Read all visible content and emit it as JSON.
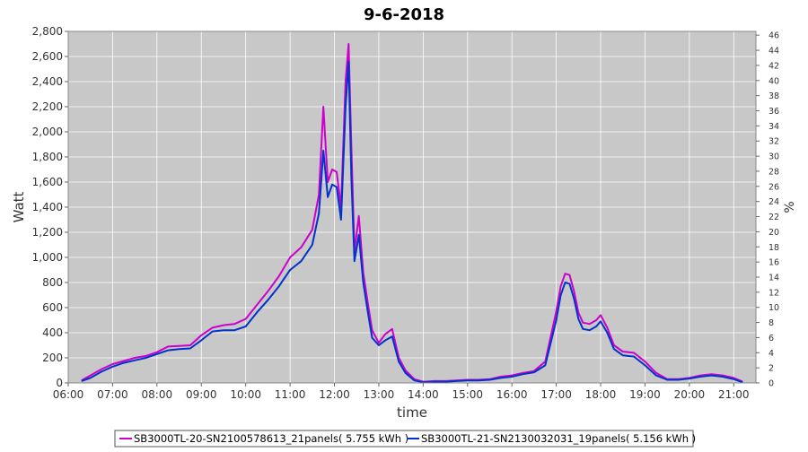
{
  "chart_data": {
    "type": "line",
    "title": "9-6-2018",
    "xlabel": "time",
    "ylabel": "Watt",
    "y2label": "%",
    "xlim": [
      6.0,
      21.5
    ],
    "ylim": [
      0,
      2800
    ],
    "y2lim": [
      0,
      46.5
    ],
    "x_ticks": [
      "06:00",
      "07:00",
      "08:00",
      "09:00",
      "10:00",
      "11:00",
      "12:00",
      "13:00",
      "14:00",
      "15:00",
      "16:00",
      "17:00",
      "18:00",
      "19:00",
      "20:00",
      "21:00"
    ],
    "y_ticks": [
      "0",
      "200",
      "400",
      "600",
      "800",
      "1,000",
      "1,200",
      "1,400",
      "1,600",
      "1,800",
      "2,000",
      "2,200",
      "2,400",
      "2,600",
      "2,800"
    ],
    "y2_ticks": [
      "0",
      "2",
      "4",
      "6",
      "8",
      "10",
      "12",
      "14",
      "16",
      "18",
      "20",
      "22",
      "24",
      "26",
      "28",
      "30",
      "32",
      "34",
      "36",
      "38",
      "40",
      "42",
      "44",
      "46"
    ],
    "grid": true,
    "legend_position": "bottom",
    "colors": {
      "plot_bg": "#c8c8c8",
      "grid": "#ffffff"
    },
    "series": [
      {
        "name": "SB3000TL-20-SN2100578613_21panels( 5.755 kWh )",
        "color": "#cc00cc",
        "x": [
          6.3,
          6.5,
          6.75,
          7.0,
          7.25,
          7.5,
          7.75,
          8.0,
          8.25,
          8.5,
          8.75,
          9.0,
          9.25,
          9.5,
          9.75,
          10.0,
          10.25,
          10.5,
          10.75,
          11.0,
          11.25,
          11.5,
          11.65,
          11.75,
          11.85,
          11.95,
          12.05,
          12.15,
          12.25,
          12.32,
          12.38,
          12.45,
          12.55,
          12.65,
          12.75,
          12.85,
          13.0,
          13.15,
          13.3,
          13.45,
          13.6,
          13.8,
          14.0,
          14.25,
          14.5,
          14.75,
          15.0,
          15.25,
          15.5,
          15.75,
          16.0,
          16.25,
          16.5,
          16.75,
          17.0,
          17.1,
          17.2,
          17.3,
          17.4,
          17.5,
          17.6,
          17.75,
          17.9,
          18.0,
          18.15,
          18.3,
          18.5,
          18.75,
          19.0,
          19.25,
          19.5,
          19.75,
          20.0,
          20.25,
          20.5,
          20.75,
          21.0,
          21.2
        ],
        "values": [
          20,
          60,
          110,
          150,
          175,
          200,
          215,
          245,
          290,
          295,
          300,
          380,
          440,
          460,
          470,
          510,
          620,
          730,
          850,
          1000,
          1080,
          1220,
          1500,
          2200,
          1600,
          1700,
          1680,
          1400,
          2400,
          2700,
          1900,
          1050,
          1330,
          880,
          640,
          420,
          320,
          390,
          430,
          200,
          100,
          30,
          10,
          15,
          15,
          20,
          25,
          25,
          30,
          50,
          60,
          80,
          95,
          170,
          570,
          770,
          870,
          860,
          730,
          560,
          480,
          470,
          500,
          540,
          440,
          300,
          250,
          240,
          170,
          80,
          30,
          30,
          40,
          60,
          70,
          60,
          40,
          10
        ]
      },
      {
        "name": "SB3000TL-21-SN2130032031_19panels( 5.156 kWh )",
        "color": "#0033cc",
        "x": [
          6.3,
          6.5,
          6.75,
          7.0,
          7.25,
          7.5,
          7.75,
          8.0,
          8.25,
          8.5,
          8.75,
          9.0,
          9.25,
          9.5,
          9.75,
          10.0,
          10.25,
          10.5,
          10.75,
          11.0,
          11.25,
          11.5,
          11.65,
          11.75,
          11.85,
          11.95,
          12.05,
          12.15,
          12.25,
          12.32,
          12.38,
          12.45,
          12.55,
          12.65,
          12.75,
          12.85,
          13.0,
          13.15,
          13.3,
          13.45,
          13.6,
          13.8,
          14.0,
          14.25,
          14.5,
          14.75,
          15.0,
          15.25,
          15.5,
          15.75,
          16.0,
          16.25,
          16.5,
          16.75,
          17.0,
          17.1,
          17.2,
          17.3,
          17.4,
          17.5,
          17.6,
          17.75,
          17.9,
          18.0,
          18.15,
          18.3,
          18.5,
          18.75,
          19.0,
          19.25,
          19.5,
          19.75,
          20.0,
          20.25,
          20.5,
          20.75,
          21.0,
          21.2
        ],
        "values": [
          15,
          40,
          90,
          130,
          160,
          180,
          200,
          230,
          260,
          270,
          275,
          340,
          410,
          420,
          420,
          450,
          560,
          660,
          770,
          900,
          970,
          1100,
          1350,
          1850,
          1480,
          1580,
          1560,
          1300,
          2200,
          2560,
          1650,
          970,
          1180,
          800,
          570,
          360,
          300,
          340,
          370,
          170,
          80,
          20,
          5,
          10,
          10,
          15,
          20,
          20,
          25,
          40,
          50,
          70,
          85,
          140,
          500,
          700,
          800,
          790,
          670,
          510,
          430,
          420,
          450,
          490,
          400,
          270,
          220,
          210,
          140,
          60,
          25,
          25,
          35,
          50,
          60,
          50,
          30,
          5
        ]
      }
    ]
  }
}
